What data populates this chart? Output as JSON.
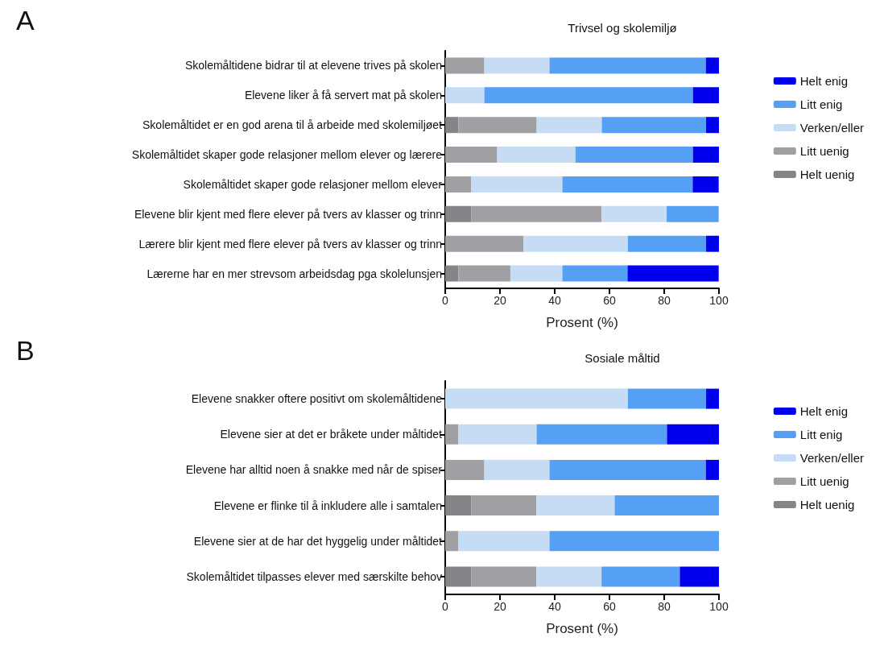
{
  "chart_data": [
    {
      "type": "bar",
      "orientation": "horizontal",
      "stacked": true,
      "title": "Trivsel og skolemiljø",
      "xlabel": "Prosent (%)",
      "annotations": [
        "A"
      ],
      "legend": "right",
      "grid": false,
      "categories": [
        "Skolemåltidene bidrar til at elevene trives på skolen",
        "Elevene liker å få servert mat på skolen",
        "Skolemåltidet er en god arena til å arbeide med skolemiljøet",
        "Skolemåltidet skaper gode relasjoner mellom elever og lærere",
        "Skolemåltidet skaper gode relasjoner mellom elever",
        "Elevene blir kjent med flere elever på tvers av klasser og trinn",
        "Lærere blir kjent med flere elever på tvers av klasser og trinn",
        "Lærerne har en mer strevsom arbeidsdag pga skolelunsjen"
      ],
      "xlim": [
        0,
        100
      ],
      "xticks": [
        0,
        20,
        40,
        60,
        80,
        100
      ],
      "series": [
        {
          "name": "Helt uenig",
          "color": "#858589",
          "values": [
            0,
            0,
            4.8,
            0,
            0,
            9.5,
            0,
            4.8
          ]
        },
        {
          "name": "Litt uenig",
          "color": "#a0a0a4",
          "values": [
            14.3,
            0,
            28.6,
            19.0,
            9.5,
            47.6,
            28.6,
            19.0
          ]
        },
        {
          "name": "Verken/eller",
          "color": "#c6dcf5",
          "values": [
            23.8,
            14.3,
            23.8,
            28.6,
            33.3,
            23.8,
            38.1,
            19.0
          ]
        },
        {
          "name": "Litt enig",
          "color": "#55a0f5",
          "values": [
            57.1,
            76.2,
            38.1,
            42.9,
            47.6,
            19.0,
            28.6,
            23.8
          ]
        },
        {
          "name": "Helt enig",
          "color": "#0000ee",
          "values": [
            4.8,
            9.5,
            4.8,
            9.5,
            9.5,
            0,
            4.8,
            33.3
          ]
        }
      ]
    },
    {
      "type": "bar",
      "orientation": "horizontal",
      "stacked": true,
      "title": "Sosiale måltid",
      "xlabel": "Prosent (%)",
      "annotations": [
        "B"
      ],
      "legend": "right",
      "grid": false,
      "categories": [
        "Elevene snakker oftere positivt om skolemåltidene",
        "Elevene sier at det er bråkete under måltidet",
        "Elevene har alltid noen å snakke med når de spiser",
        "Elevene er flinke til å inkludere alle i samtalen",
        "Elevene sier at de har det hyggelig under måltidet",
        "Skolemåltidet tilpasses elever med særskilte behov"
      ],
      "xlim": [
        0,
        100
      ],
      "xticks": [
        0,
        20,
        40,
        60,
        80,
        100
      ],
      "series": [
        {
          "name": "Helt uenig",
          "color": "#858589",
          "values": [
            0,
            0,
            0,
            9.5,
            0,
            9.5
          ]
        },
        {
          "name": "Litt uenig",
          "color": "#a0a0a4",
          "values": [
            0,
            4.8,
            14.3,
            23.8,
            4.8,
            23.8
          ]
        },
        {
          "name": "Verken/eller",
          "color": "#c6dcf5",
          "values": [
            66.7,
            28.6,
            23.8,
            28.6,
            33.3,
            23.8
          ]
        },
        {
          "name": "Litt enig",
          "color": "#55a0f5",
          "values": [
            28.6,
            47.6,
            57.1,
            38.1,
            61.9,
            28.6
          ]
        },
        {
          "name": "Helt enig",
          "color": "#0000ee",
          "values": [
            4.8,
            19.0,
            4.8,
            0,
            0,
            14.3
          ]
        }
      ]
    }
  ]
}
